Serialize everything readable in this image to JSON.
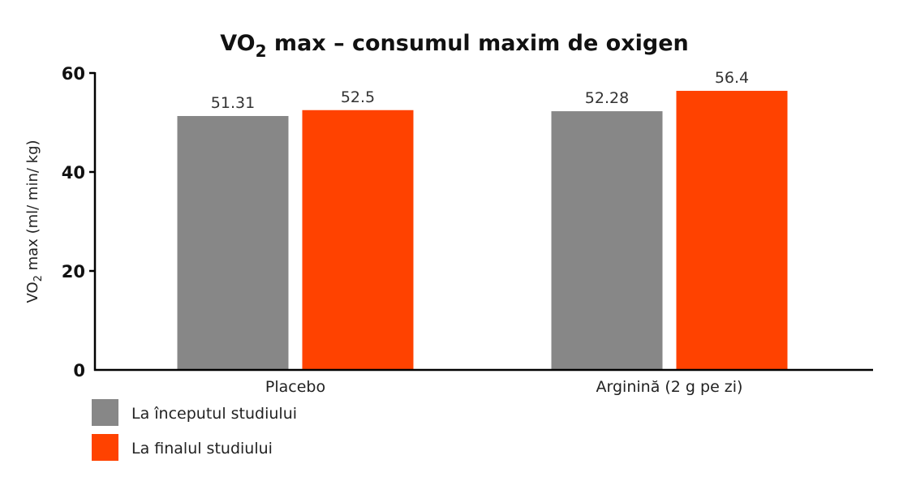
{
  "chart_data": {
    "type": "bar",
    "title": {
      "main": "VO",
      "sub": "2",
      "rest": " max – consumul maxim de oxigen"
    },
    "ylabel": {
      "main": "VO",
      "sub": "2",
      "rest": " max (ml/ min/ kg)"
    },
    "xlabel": "",
    "ylim": [
      0,
      60
    ],
    "yticks": [
      0,
      20,
      40,
      60
    ],
    "grid": false,
    "legend_position": "bottom-left",
    "categories": [
      "Placebo",
      "Arginină (2 g pe zi)"
    ],
    "series": [
      {
        "name": "La începutul studiului",
        "values": [
          51.31,
          52.28
        ],
        "labels": [
          "51.31",
          "52.28"
        ],
        "color": "#878787"
      },
      {
        "name": "La finalul studiului",
        "values": [
          52.5,
          56.4
        ],
        "labels": [
          "52.5",
          "56.4"
        ],
        "color": "#ff4200"
      }
    ]
  }
}
